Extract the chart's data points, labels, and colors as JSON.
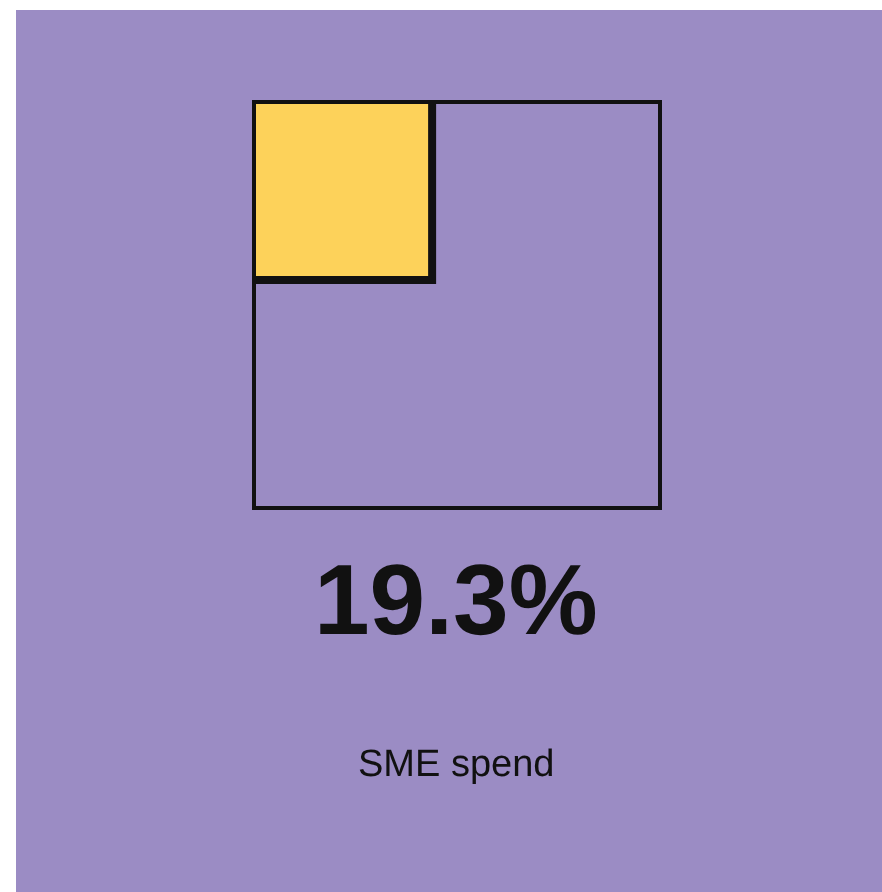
{
  "chart_data": {
    "type": "other",
    "categories": [
      "SME spend"
    ],
    "values": [
      19.3
    ],
    "value_labels": [
      "19.3%"
    ],
    "colors": [
      "#fdd25a"
    ]
  }
}
